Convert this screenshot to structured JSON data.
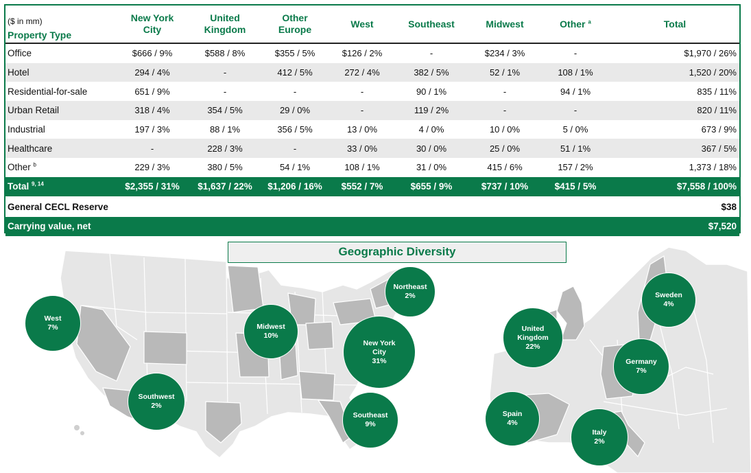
{
  "header": {
    "unit": "($ in mm)",
    "property_type": "Property Type",
    "columns": [
      {
        "line1": "New York",
        "line2": "City"
      },
      {
        "line1": "United",
        "line2": "Kingdom"
      },
      {
        "line1": "Other",
        "line2": "Europe"
      },
      {
        "line1": "West",
        "line2": ""
      },
      {
        "line1": "Southeast",
        "line2": ""
      },
      {
        "line1": "Midwest",
        "line2": ""
      },
      {
        "line1": "Other",
        "line2": "",
        "sup": "a"
      },
      {
        "line1": "Total",
        "line2": ""
      }
    ]
  },
  "rows": [
    {
      "label": "Office",
      "sup": "",
      "cells": [
        "$666 / 9%",
        "$588 / 8%",
        "$355 / 5%",
        "$126 / 2%",
        "-",
        "$234 / 3%",
        "-",
        "$1,970 / 26%"
      ]
    },
    {
      "label": "Hotel",
      "sup": "",
      "cells": [
        "294 / 4%",
        "-",
        "412 / 5%",
        "272 / 4%",
        "382 / 5%",
        "52 / 1%",
        "108 / 1%",
        "1,520 / 20%"
      ]
    },
    {
      "label": "Residential-for-sale",
      "sup": "",
      "cells": [
        "651 / 9%",
        "-",
        "-",
        "-",
        "90 / 1%",
        "-",
        "94 / 1%",
        "835 / 11%"
      ]
    },
    {
      "label": "Urban Retail",
      "sup": "",
      "cells": [
        "318 / 4%",
        "354 / 5%",
        "29 / 0%",
        "-",
        "119 / 2%",
        "-",
        "-",
        "820 / 11%"
      ]
    },
    {
      "label": "Industrial",
      "sup": "",
      "cells": [
        "197 / 3%",
        "88 / 1%",
        "356 / 5%",
        "13 / 0%",
        "4 / 0%",
        "10 / 0%",
        "5 / 0%",
        "673 / 9%"
      ]
    },
    {
      "label": "Healthcare",
      "sup": "",
      "cells": [
        "-",
        "228 / 3%",
        "-",
        "33 / 0%",
        "30 / 0%",
        "25 / 0%",
        "51 / 1%",
        "367 / 5%"
      ]
    },
    {
      "label": "Other",
      "sup": "b",
      "cells": [
        "229 / 3%",
        "380 / 5%",
        "54 / 1%",
        "108 / 1%",
        "31 / 0%",
        "415 / 6%",
        "157 / 2%",
        "1,373 / 18%"
      ]
    }
  ],
  "total_row": {
    "label": "Total",
    "sup": "9, 14",
    "cells": [
      "$2,355 / 31%",
      "$1,637 / 22%",
      "$1,206 / 16%",
      "$552 / 7%",
      "$655 / 9%",
      "$737 / 10%",
      "$415 / 5%",
      "$7,558 / 100%"
    ]
  },
  "cecl": {
    "label": "General CECL Reserve",
    "value": "$38"
  },
  "carrying": {
    "label": "Carrying value, net",
    "value": "$7,520"
  },
  "geo_title": "Geographic Diversity",
  "bubbles": [
    {
      "id": "west",
      "lines": [
        "West",
        "7%"
      ]
    },
    {
      "id": "southwest",
      "lines": [
        "Southwest",
        "2%"
      ]
    },
    {
      "id": "midwest",
      "lines": [
        "Midwest",
        "10%"
      ]
    },
    {
      "id": "northeast",
      "lines": [
        "Northeast",
        "2%"
      ]
    },
    {
      "id": "nyc",
      "lines": [
        "New York",
        "City",
        "31%"
      ]
    },
    {
      "id": "southeast",
      "lines": [
        "Southeast",
        "9%"
      ]
    },
    {
      "id": "uk",
      "lines": [
        "United",
        "Kingdom",
        "22%"
      ]
    },
    {
      "id": "sweden",
      "lines": [
        "Sweden",
        "4%"
      ]
    },
    {
      "id": "germany",
      "lines": [
        "Germany",
        "7%"
      ]
    },
    {
      "id": "spain",
      "lines": [
        "Spain",
        "4%"
      ]
    },
    {
      "id": "italy",
      "lines": [
        "Italy",
        "2%"
      ]
    }
  ],
  "colors": {
    "brand_green": "#0a7a4a",
    "row_alt": "#e9e9e9",
    "map_light": "#e6e6e6",
    "map_dark": "#b9b9b9"
  }
}
